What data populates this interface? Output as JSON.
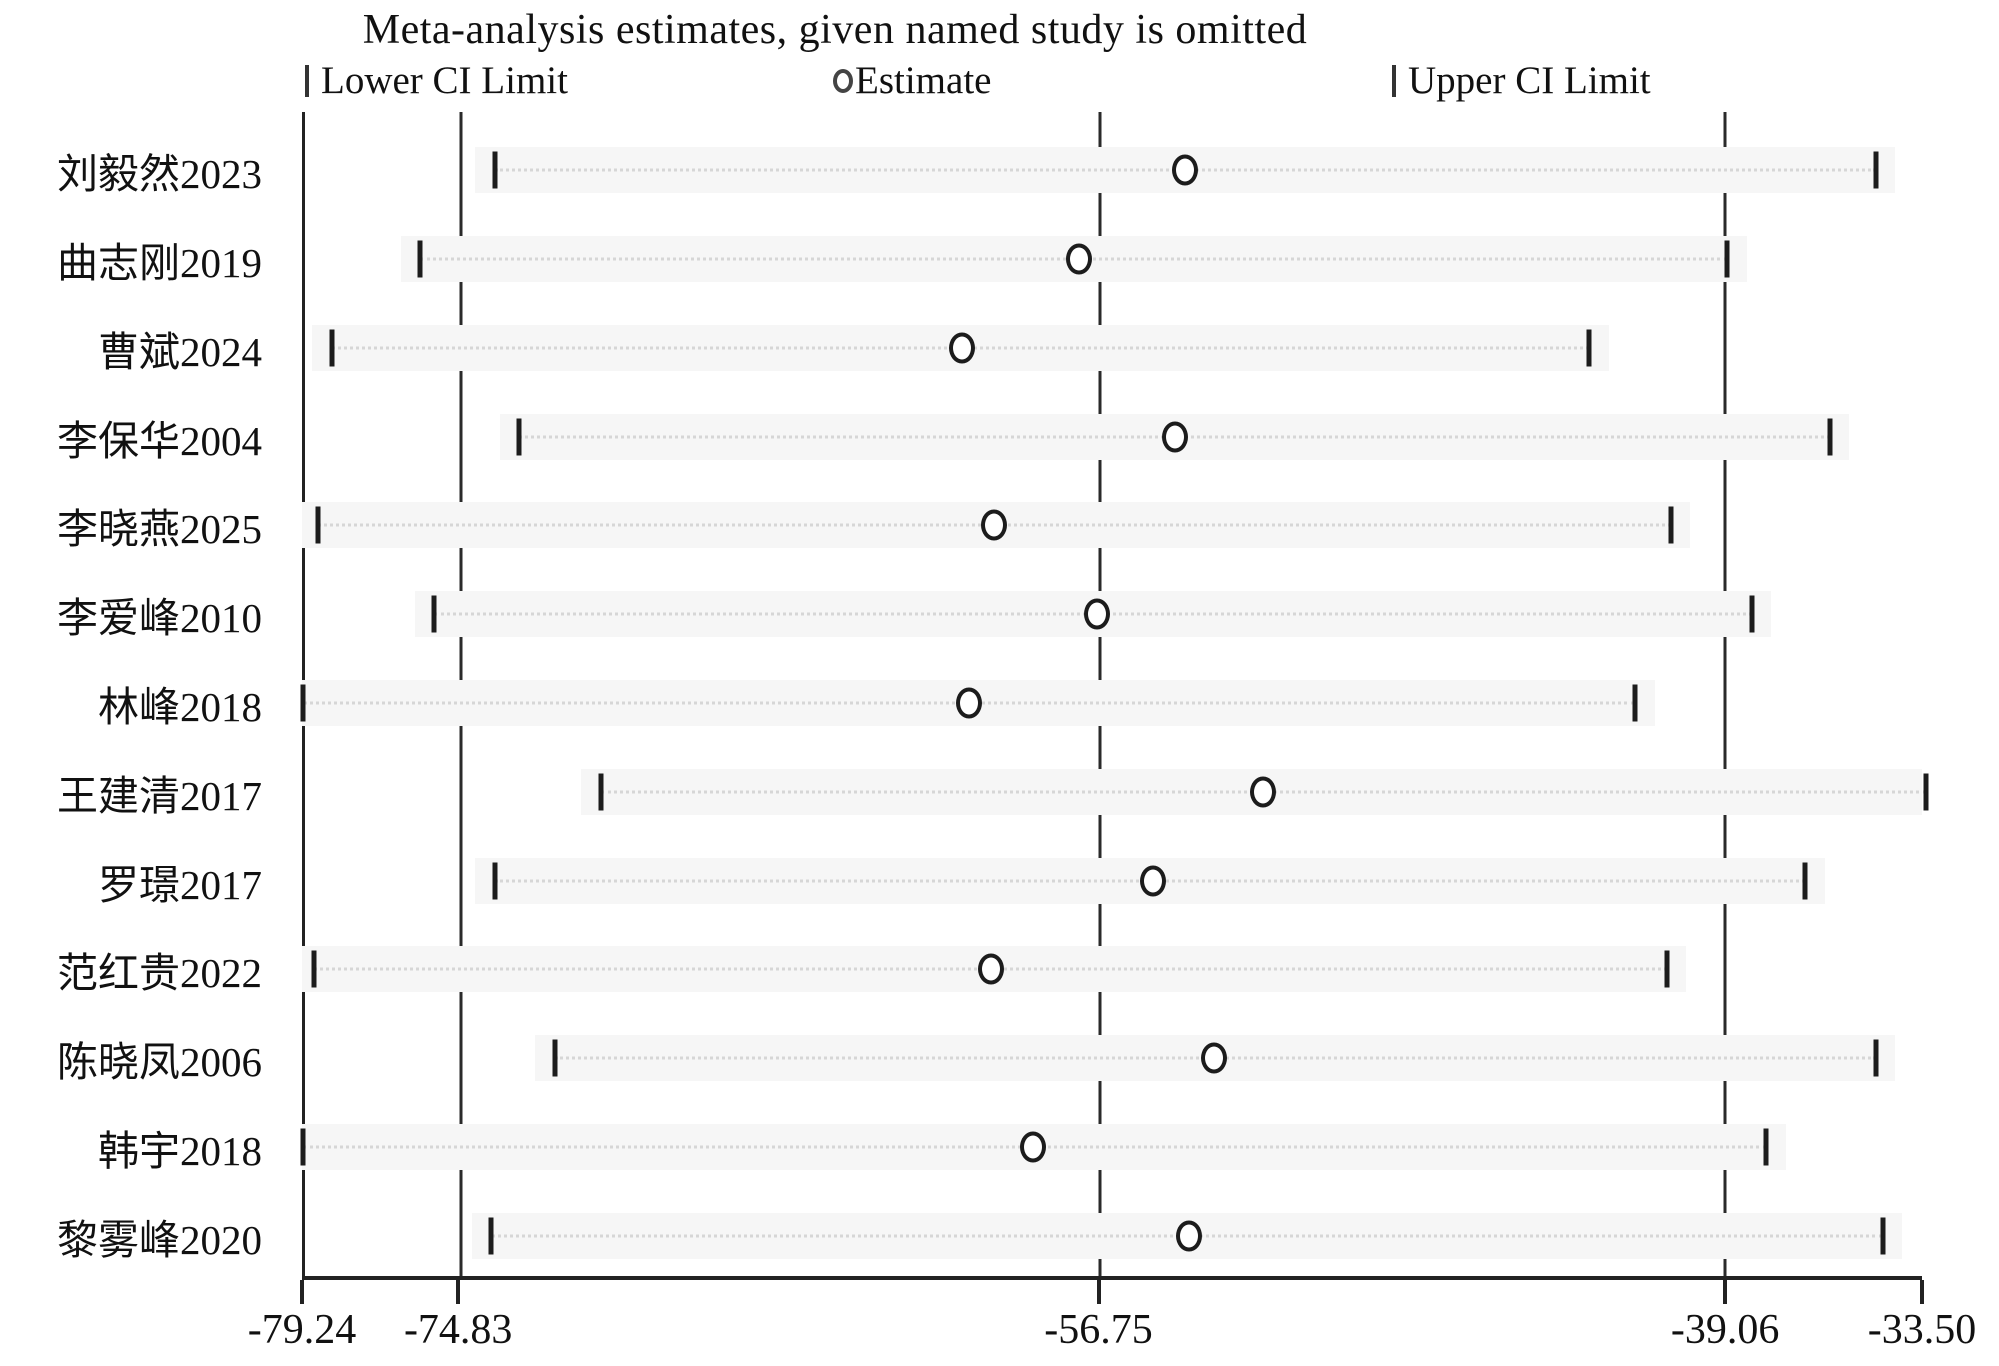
{
  "title": "Meta-analysis estimates, given named study is omitted",
  "legend": {
    "lower_label": "Lower CI Limit",
    "estimate_label": "Estimate",
    "upper_label": "Upper CI Limit"
  },
  "colors": {
    "marker": "#1c1c1c",
    "refline": "#2a2a2a",
    "dotted_line": "#d6d6d6",
    "row_band": "#f6f6f6",
    "background": "#ffffff"
  },
  "chart_data": {
    "type": "scatter",
    "subtype": "leave-one-out-sensitivity-forest",
    "title": "Meta-analysis estimates, given named study is omitted",
    "xlabel": "",
    "ylabel": "",
    "xlim": [
      -79.24,
      -33.5
    ],
    "grid": false,
    "legend_position": "top",
    "x_ticks": [
      -79.24,
      -74.83,
      -56.75,
      -39.06,
      -33.5
    ],
    "x_tick_labels": [
      "-79.24",
      "-74.83",
      "-56.75",
      "-39.06",
      "-33.50"
    ],
    "reference_lines": [
      -74.83,
      -56.75,
      -39.06
    ],
    "overall": {
      "estimate": -56.75,
      "lower_ci": -74.83,
      "upper_ci": -39.06
    },
    "studies": [
      {
        "label": "刘毅然2023",
        "lower": -73.8,
        "estimate": -54.3,
        "upper": -34.8
      },
      {
        "label": "曲志刚2019",
        "lower": -75.9,
        "estimate": -57.3,
        "upper": -39.0
      },
      {
        "label": "曹斌2024",
        "lower": -78.4,
        "estimate": -60.6,
        "upper": -42.9
      },
      {
        "label": "李保华2004",
        "lower": -73.1,
        "estimate": -54.6,
        "upper": -36.1
      },
      {
        "label": "李晓燕2025",
        "lower": -78.8,
        "estimate": -59.7,
        "upper": -40.6
      },
      {
        "label": "李爱峰2010",
        "lower": -75.5,
        "estimate": -56.8,
        "upper": -38.3
      },
      {
        "label": "林峰2018",
        "lower": -79.2,
        "estimate": -60.4,
        "upper": -41.6
      },
      {
        "label": "王建清2017",
        "lower": -70.8,
        "estimate": -52.1,
        "upper": -33.4
      },
      {
        "label": "罗璟2017",
        "lower": -73.8,
        "estimate": -55.2,
        "upper": -36.8
      },
      {
        "label": "范红贵2022",
        "lower": -78.9,
        "estimate": -59.8,
        "upper": -40.7
      },
      {
        "label": "陈晓凤2006",
        "lower": -72.1,
        "estimate": -53.5,
        "upper": -34.8
      },
      {
        "label": "韩宇2018",
        "lower": -79.2,
        "estimate": -58.6,
        "upper": -37.9
      },
      {
        "label": "黎雾峰2020",
        "lower": -73.9,
        "estimate": -54.2,
        "upper": -34.6
      }
    ]
  }
}
